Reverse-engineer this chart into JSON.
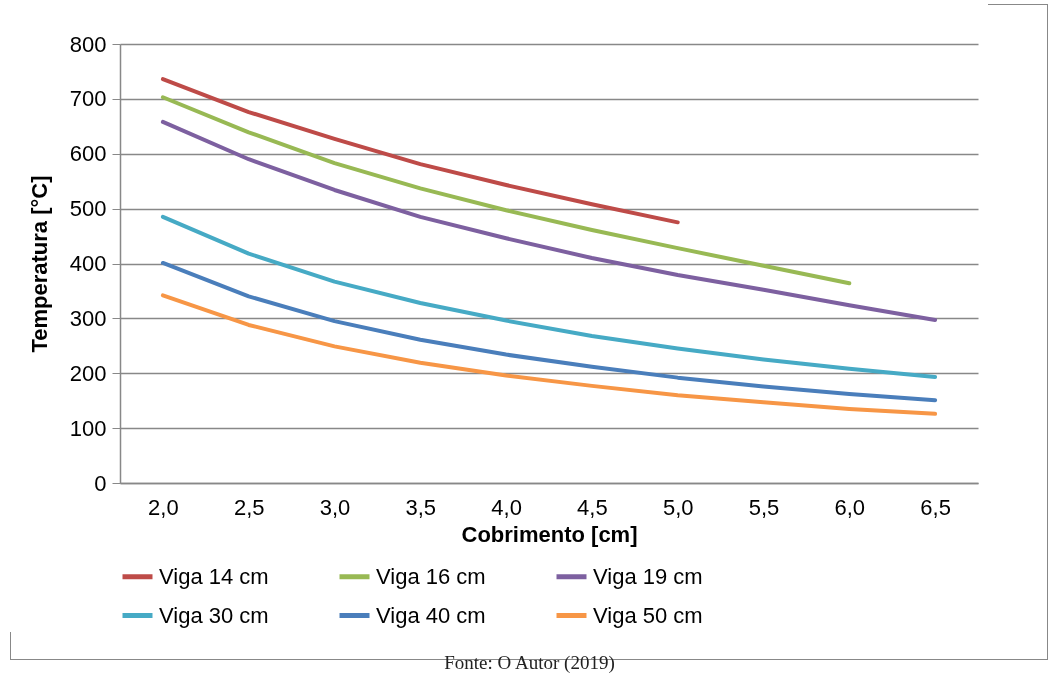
{
  "chart_data": {
    "type": "line",
    "xlabel": "Cobrimento [cm]",
    "ylabel": "Temperatura [°C]",
    "categories": [
      "2,0",
      "2,5",
      "3,0",
      "3,5",
      "4,0",
      "4,5",
      "5,0",
      "5,5",
      "6,0",
      "6,5"
    ],
    "series": [
      {
        "name": "Viga 14 cm",
        "color": "#be4b48",
        "values": [
          736,
          676,
          627,
          581,
          543,
          508,
          475,
          null,
          null,
          null
        ]
      },
      {
        "name": "Viga 16 cm",
        "color": "#98b954",
        "values": [
          703,
          639,
          583,
          537,
          497,
          461,
          428,
          396,
          364,
          null
        ]
      },
      {
        "name": "Viga 19 cm",
        "color": "#7d60a0",
        "values": [
          658,
          590,
          534,
          485,
          446,
          410,
          379,
          352,
          324,
          297
        ]
      },
      {
        "name": "Viga 30 cm",
        "color": "#46aac5",
        "values": [
          485,
          418,
          367,
          328,
          296,
          268,
          245,
          225,
          208,
          193
        ]
      },
      {
        "name": "Viga 40 cm",
        "color": "#4a7ebb",
        "values": [
          401,
          340,
          295,
          261,
          234,
          212,
          192,
          176,
          162,
          151
        ]
      },
      {
        "name": "Viga 50 cm",
        "color": "#f79646",
        "values": [
          342,
          288,
          249,
          219,
          196,
          177,
          160,
          147,
          135,
          126
        ]
      }
    ],
    "ylim": [
      0,
      800
    ],
    "yticks": [
      0,
      100,
      200,
      300,
      400,
      500,
      600,
      700,
      800
    ],
    "grid": "y",
    "legend": "bottom",
    "line_style": "solid",
    "annotations": [
      "Fonte: O Autor (2019)"
    ]
  }
}
